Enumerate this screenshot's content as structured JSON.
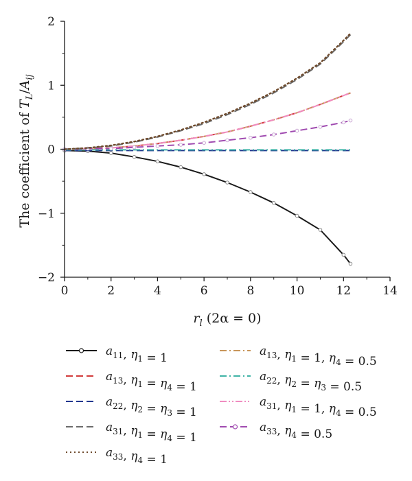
{
  "chart_data": {
    "type": "line",
    "ylabel": "The coefficient of T_L/A_ij",
    "xlabel": "r_l (2α = 0)",
    "xlim": [
      0,
      14
    ],
    "ylim": [
      -2,
      2
    ],
    "xticks": [
      0,
      2,
      4,
      6,
      8,
      10,
      12,
      14
    ],
    "yticks": [
      -2,
      -1,
      0,
      1,
      2
    ],
    "x_tick_labels": [
      "0",
      "2",
      "4",
      "6",
      "8",
      "10",
      "12",
      "14"
    ],
    "y_tick_labels": [
      "−2",
      "−1",
      "0",
      "1",
      "2"
    ],
    "grid": false,
    "legend_position": "below",
    "x": [
      0,
      1,
      2,
      3,
      4,
      5,
      6,
      7,
      8,
      9,
      10,
      11,
      12,
      12.3
    ],
    "series": [
      {
        "name": "a11, η1 = 1",
        "color": "#1a1a1a",
        "dash": "solid",
        "marker": "circle",
        "values": [
          -0.02,
          -0.03,
          -0.06,
          -0.12,
          -0.19,
          -0.28,
          -0.39,
          -0.52,
          -0.67,
          -0.84,
          -1.04,
          -1.26,
          -1.65,
          -1.79
        ]
      },
      {
        "name": "a13, η1 = η4 = 1",
        "color": "#d23a3a",
        "dash": "dash",
        "marker": "none",
        "values": [
          0.0,
          0.01,
          0.02,
          0.05,
          0.09,
          0.14,
          0.2,
          0.27,
          0.36,
          0.46,
          0.57,
          0.7,
          0.84,
          0.88
        ]
      },
      {
        "name": "a22, η2 = η3 = 1",
        "color": "#22378f",
        "dash": "dash",
        "marker": "none",
        "values": [
          -0.02,
          -0.02,
          -0.02,
          -0.02,
          -0.02,
          -0.02,
          -0.02,
          -0.02,
          -0.02,
          -0.02,
          -0.02,
          -0.02,
          -0.02,
          -0.02
        ]
      },
      {
        "name": "a31, η1 = η4 = 1",
        "color": "#6b6b6b",
        "dash": "dash",
        "marker": "none",
        "values": [
          0.0,
          0.02,
          0.05,
          0.11,
          0.19,
          0.29,
          0.4,
          0.54,
          0.7,
          0.88,
          1.09,
          1.33,
          1.68,
          1.79
        ]
      },
      {
        "name": "a33, η4 = 1",
        "color": "#6e4a2c",
        "dash": "dot",
        "marker": "none",
        "values": [
          0.0,
          0.02,
          0.06,
          0.12,
          0.2,
          0.3,
          0.42,
          0.56,
          0.72,
          0.9,
          1.11,
          1.35,
          1.7,
          1.81
        ]
      },
      {
        "name": "a13, η1 = 1, η4 = 0.5",
        "color": "#c8955a",
        "dash": "dashdot",
        "marker": "none",
        "values": [
          0.0,
          0.01,
          0.02,
          0.05,
          0.09,
          0.14,
          0.2,
          0.27,
          0.36,
          0.46,
          0.57,
          0.7,
          0.84,
          0.88
        ]
      },
      {
        "name": "a22, η2 = η3 = 0.5",
        "color": "#3fb3a6",
        "dash": "dashdot",
        "marker": "none",
        "values": [
          -0.01,
          -0.01,
          -0.01,
          -0.01,
          -0.01,
          -0.01,
          -0.01,
          -0.01,
          -0.01,
          -0.01,
          -0.01,
          -0.01,
          -0.01,
          -0.01
        ]
      },
      {
        "name": "a31, η1 = 1, η4 = 0.5",
        "color": "#f08cc0",
        "dash": "dashdotdot",
        "marker": "none",
        "values": [
          0.0,
          0.01,
          0.02,
          0.05,
          0.09,
          0.14,
          0.2,
          0.27,
          0.36,
          0.46,
          0.57,
          0.7,
          0.84,
          0.88
        ]
      },
      {
        "name": "a33, η4 = 0.5",
        "color": "#a04bb0",
        "dash": "dash",
        "marker": "circle",
        "values": [
          0.0,
          0.01,
          0.01,
          0.03,
          0.05,
          0.07,
          0.1,
          0.14,
          0.18,
          0.23,
          0.29,
          0.35,
          0.42,
          0.45
        ]
      }
    ]
  }
}
